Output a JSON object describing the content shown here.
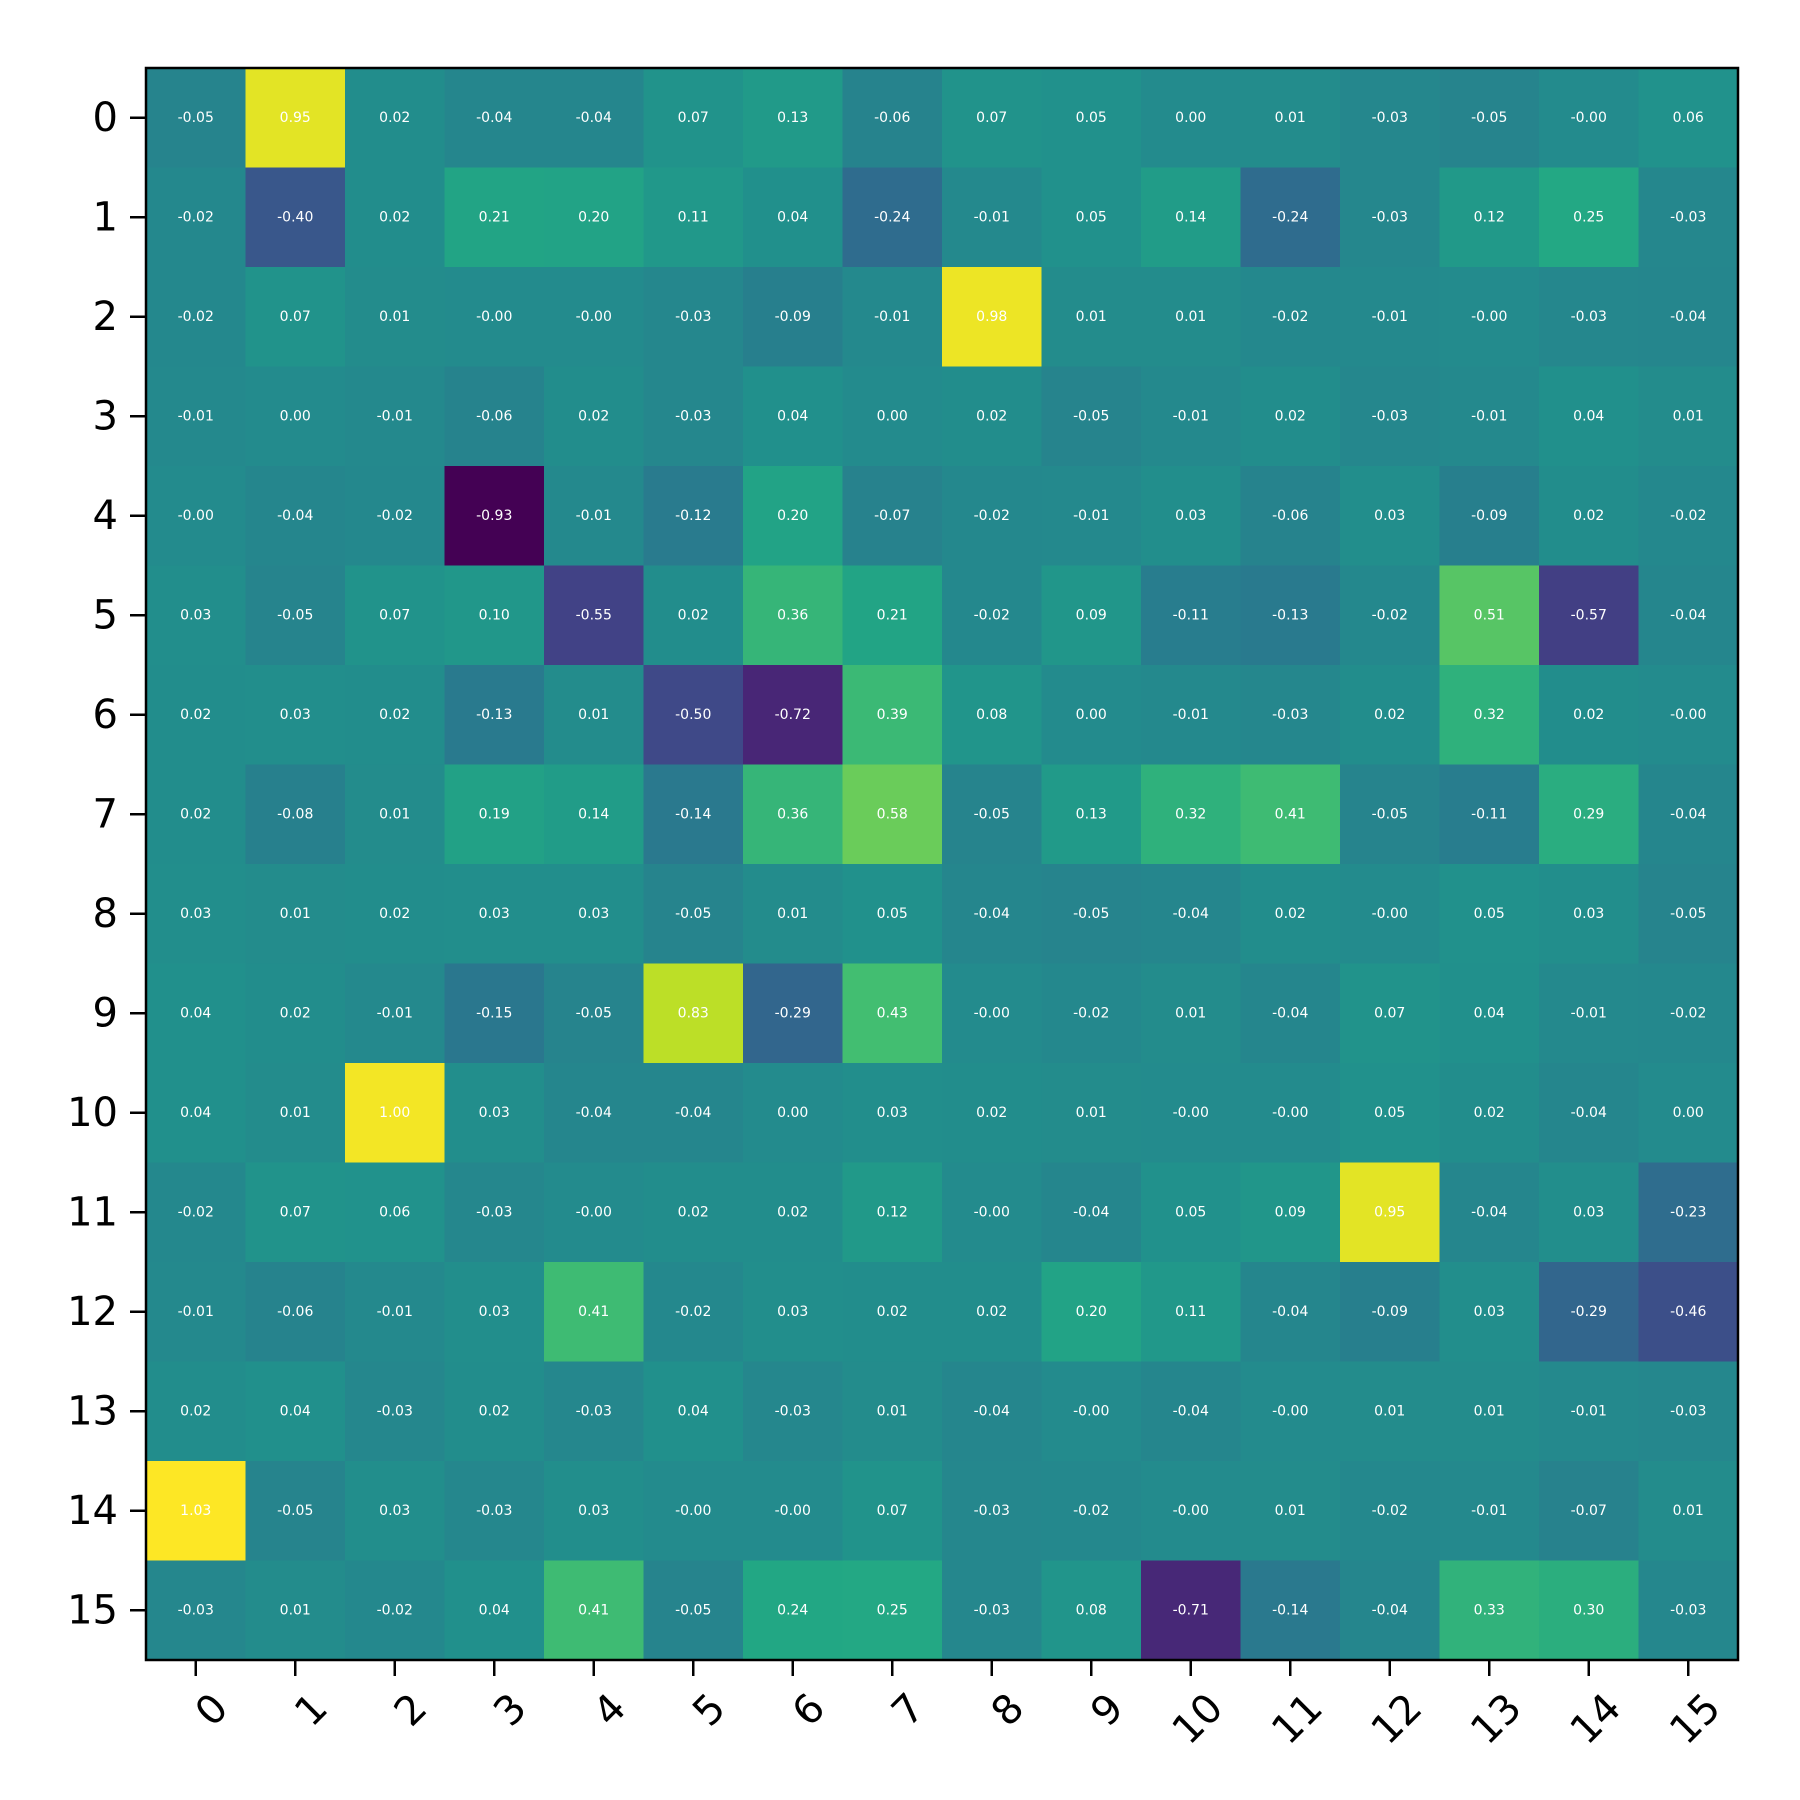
{
  "chart_data": {
    "type": "heatmap",
    "title": "",
    "xlabel": "",
    "ylabel": "",
    "colormap": "viridis",
    "vlim": [
      -0.93,
      1.03
    ],
    "cell_text_color": "#ffffff",
    "x_tick_labels": [
      "0",
      "1",
      "2",
      "3",
      "4",
      "5",
      "6",
      "7",
      "8",
      "9",
      "10",
      "11",
      "12",
      "13",
      "14",
      "15"
    ],
    "y_tick_labels": [
      "0",
      "1",
      "2",
      "3",
      "4",
      "5",
      "6",
      "7",
      "8",
      "9",
      "10",
      "11",
      "12",
      "13",
      "14",
      "15"
    ],
    "values": [
      [
        -0.05,
        0.95,
        0.02,
        -0.04,
        -0.04,
        0.07,
        0.13,
        -0.06,
        0.07,
        0.05,
        0.0,
        0.01,
        -0.03,
        -0.05,
        -0.0,
        0.06
      ],
      [
        -0.02,
        -0.4,
        0.02,
        0.21,
        0.2,
        0.11,
        0.04,
        -0.24,
        -0.01,
        0.05,
        0.14,
        -0.24,
        -0.03,
        0.12,
        0.25,
        -0.03
      ],
      [
        -0.02,
        0.07,
        0.01,
        -0.0,
        -0.0,
        -0.03,
        -0.09,
        -0.01,
        0.98,
        0.01,
        0.01,
        -0.02,
        -0.01,
        -0.0,
        -0.03,
        -0.04
      ],
      [
        -0.01,
        0.0,
        -0.01,
        -0.06,
        0.02,
        -0.03,
        0.04,
        0.0,
        0.02,
        -0.05,
        -0.01,
        0.02,
        -0.03,
        -0.01,
        0.04,
        0.01
      ],
      [
        -0.0,
        -0.04,
        -0.02,
        -0.93,
        -0.01,
        -0.12,
        0.2,
        -0.07,
        -0.02,
        -0.01,
        0.03,
        -0.06,
        0.03,
        -0.09,
        0.02,
        -0.02
      ],
      [
        0.03,
        -0.05,
        0.07,
        0.1,
        -0.55,
        0.02,
        0.36,
        0.21,
        -0.02,
        0.09,
        -0.11,
        -0.13,
        -0.02,
        0.51,
        -0.57,
        -0.04
      ],
      [
        0.02,
        0.03,
        0.02,
        -0.13,
        0.01,
        -0.5,
        -0.72,
        0.39,
        0.08,
        0.0,
        -0.01,
        -0.03,
        0.02,
        0.32,
        0.02,
        -0.0
      ],
      [
        0.02,
        -0.08,
        0.01,
        0.19,
        0.14,
        -0.14,
        0.36,
        0.58,
        -0.05,
        0.13,
        0.32,
        0.41,
        -0.05,
        -0.11,
        0.29,
        -0.04
      ],
      [
        0.03,
        0.01,
        0.02,
        0.03,
        0.03,
        -0.05,
        0.01,
        0.05,
        -0.04,
        -0.05,
        -0.04,
        0.02,
        -0.0,
        0.05,
        0.03,
        -0.05
      ],
      [
        0.04,
        0.02,
        -0.01,
        -0.15,
        -0.05,
        0.83,
        -0.29,
        0.43,
        -0.0,
        -0.02,
        0.01,
        -0.04,
        0.07,
        0.04,
        -0.01,
        -0.02
      ],
      [
        0.04,
        0.01,
        1.0,
        0.03,
        -0.04,
        -0.04,
        0.0,
        0.03,
        0.02,
        0.01,
        -0.0,
        -0.0,
        0.05,
        0.02,
        -0.04,
        0.0
      ],
      [
        -0.02,
        0.07,
        0.06,
        -0.03,
        -0.0,
        0.02,
        0.02,
        0.12,
        -0.0,
        -0.04,
        0.05,
        0.09,
        0.95,
        -0.04,
        0.03,
        -0.23
      ],
      [
        -0.01,
        -0.06,
        -0.01,
        0.03,
        0.41,
        -0.02,
        0.03,
        0.02,
        0.02,
        0.2,
        0.11,
        -0.04,
        -0.09,
        0.03,
        -0.29,
        -0.46
      ],
      [
        0.02,
        0.04,
        -0.03,
        0.02,
        -0.03,
        0.04,
        -0.03,
        0.01,
        -0.04,
        -0.0,
        -0.04,
        -0.0,
        0.01,
        0.01,
        -0.01,
        -0.03
      ],
      [
        1.03,
        -0.05,
        0.03,
        -0.03,
        0.03,
        -0.0,
        -0.0,
        0.07,
        -0.03,
        -0.02,
        -0.0,
        0.01,
        -0.02,
        -0.01,
        -0.07,
        0.01
      ],
      [
        -0.03,
        0.01,
        -0.02,
        0.04,
        0.41,
        -0.05,
        0.24,
        0.25,
        -0.03,
        0.08,
        -0.71,
        -0.14,
        -0.04,
        0.33,
        0.3,
        -0.03
      ]
    ]
  }
}
